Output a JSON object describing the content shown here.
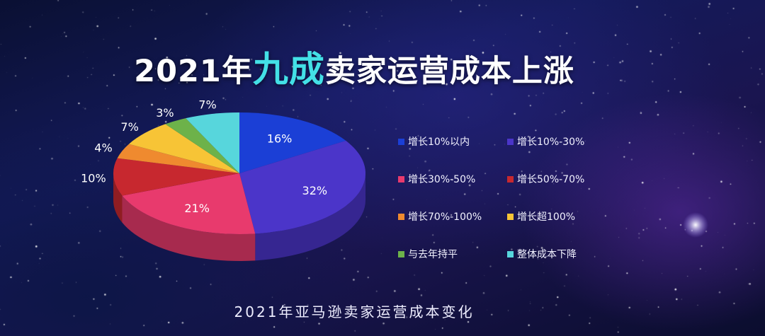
{
  "title": {
    "prefix": "2021年",
    "highlight": "九成",
    "suffix": "卖家运营成本上涨"
  },
  "caption": "2021年亚马逊卖家运营成本变化",
  "chart_data": {
    "type": "pie",
    "title": "2021年九成卖家运营成本上涨",
    "legend_position": "right",
    "slices": [
      {
        "label": "增长10%以内",
        "value": 16,
        "value_label": "16%",
        "color": "#1b3fd6"
      },
      {
        "label": "增长10%-30%",
        "value": 32,
        "value_label": "32%",
        "color": "#4b35c9"
      },
      {
        "label": "增长30%-50%",
        "value": 21,
        "value_label": "21%",
        "color": "#e83a6d"
      },
      {
        "label": "增长50%-70%",
        "value": 10,
        "value_label": "10%",
        "color": "#c7282f"
      },
      {
        "label": "增长70%-100%",
        "value": 4,
        "value_label": "4%",
        "color": "#ef8a2f"
      },
      {
        "label": "增长超100%",
        "value": 7,
        "value_label": "7%",
        "color": "#f7c436"
      },
      {
        "label": "与去年持平",
        "value": 3,
        "value_label": "3%",
        "color": "#6db24a"
      },
      {
        "label": "整体成本下降",
        "value": 7,
        "value_label": "7%",
        "color": "#57d6dc"
      }
    ]
  }
}
